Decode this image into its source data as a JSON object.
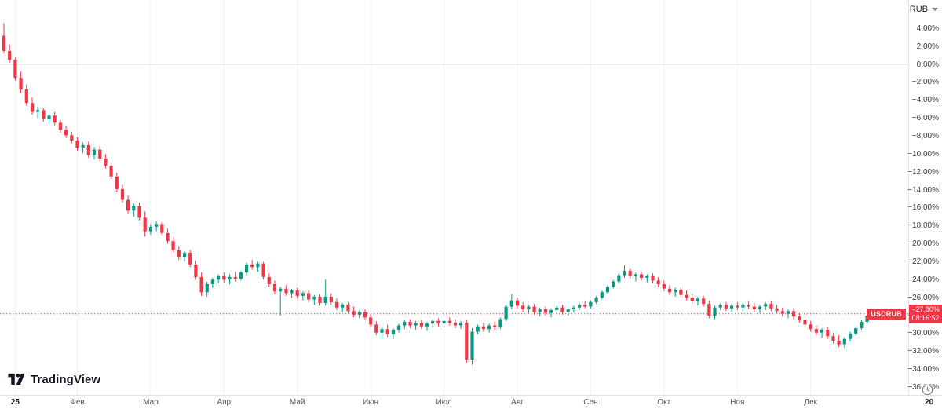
{
  "chart": {
    "currency_selector": {
      "label": "RUB"
    },
    "symbol_badge": {
      "text": "USDRUB"
    },
    "price_flag": {
      "price": "−27,80%",
      "time": "08:16:52"
    },
    "logo": {
      "text": "TradingView"
    }
  },
  "chart_data": {
    "type": "candlestick",
    "symbol": "USDRUB",
    "value_unit": "percent_change",
    "up_color": "#089981",
    "down_color": "#f23645",
    "zero_line_value": 0,
    "current_value": -27.8,
    "current_time": "08:16:52",
    "y_axis": {
      "top": 7.18,
      "bottom": -36.84,
      "ticks": [
        {
          "v": 4,
          "label": "4,00%"
        },
        {
          "v": 2,
          "label": "2,00%"
        },
        {
          "v": 0,
          "label": "0,00%"
        },
        {
          "v": -2,
          "label": "−2,00%"
        },
        {
          "v": -4,
          "label": "−4,00%"
        },
        {
          "v": -6,
          "label": "−6,00%"
        },
        {
          "v": -8,
          "label": "−8,00%"
        },
        {
          "v": -10,
          "label": "−10,00%"
        },
        {
          "v": -12,
          "label": "−12,00%"
        },
        {
          "v": -14,
          "label": "−14,00%"
        },
        {
          "v": -16,
          "label": "−16,00%"
        },
        {
          "v": -18,
          "label": "−18,00%"
        },
        {
          "v": -20,
          "label": "−20,00%"
        },
        {
          "v": -22,
          "label": "−22,00%"
        },
        {
          "v": -24,
          "label": "−24,00%"
        },
        {
          "v": -26,
          "label": "−26,00%"
        },
        {
          "v": -28,
          "label": "−28,00%"
        },
        {
          "v": -30,
          "label": "−30,00%"
        },
        {
          "v": -32,
          "label": "−32,00%"
        },
        {
          "v": -34,
          "label": "−34,00%"
        },
        {
          "v": -36,
          "label": "−36,00%"
        }
      ]
    },
    "x_ticks": [
      {
        "label": "25",
        "index": 2,
        "year": true
      },
      {
        "label": "Фев",
        "index": 13
      },
      {
        "label": "Мар",
        "index": 26
      },
      {
        "label": "Апр",
        "index": 39
      },
      {
        "label": "Май",
        "index": 52
      },
      {
        "label": "Июн",
        "index": 65
      },
      {
        "label": "Июл",
        "index": 78
      },
      {
        "label": "Авг",
        "index": 91
      },
      {
        "label": "Сен",
        "index": 104
      },
      {
        "label": "Окт",
        "index": 117
      },
      {
        "label": "Ноя",
        "index": 130
      },
      {
        "label": "Дек",
        "index": 143
      },
      {
        "label": "20",
        "index": 164,
        "year": true
      }
    ],
    "candles": [
      [
        3.2,
        4.6,
        1.2,
        1.5
      ],
      [
        1.5,
        2.2,
        0.2,
        0.5
      ],
      [
        0.5,
        0.8,
        -1.8,
        -1.5
      ],
      [
        -1.5,
        -0.8,
        -3.2,
        -2.8
      ],
      [
        -2.8,
        -2.2,
        -4.6,
        -4.3
      ],
      [
        -4.3,
        -3.7,
        -5.6,
        -5.3
      ],
      [
        -5.3,
        -4.7,
        -6.0,
        -5.1
      ],
      [
        -5.1,
        -4.9,
        -6.4,
        -6.1
      ],
      [
        -6.1,
        -5.5,
        -6.6,
        -5.7
      ],
      [
        -5.7,
        -5.3,
        -6.8,
        -6.5
      ],
      [
        -6.5,
        -6.2,
        -7.6,
        -7.3
      ],
      [
        -7.3,
        -6.8,
        -8.2,
        -7.9
      ],
      [
        -7.9,
        -7.5,
        -8.8,
        -8.5
      ],
      [
        -8.5,
        -8.1,
        -9.6,
        -9.3
      ],
      [
        -9.3,
        -8.7,
        -9.9,
        -9.0
      ],
      [
        -9.0,
        -8.6,
        -10.4,
        -10.1
      ],
      [
        -10.1,
        -9.2,
        -10.6,
        -9.5
      ],
      [
        -9.5,
        -9.1,
        -10.8,
        -10.5
      ],
      [
        -10.5,
        -10.0,
        -11.6,
        -11.3
      ],
      [
        -11.3,
        -10.9,
        -12.8,
        -12.5
      ],
      [
        -12.5,
        -12.1,
        -14.2,
        -13.9
      ],
      [
        -13.9,
        -13.4,
        -15.4,
        -15.1
      ],
      [
        -15.1,
        -14.6,
        -16.6,
        -16.3
      ],
      [
        -16.3,
        -15.5,
        -17.0,
        -15.8
      ],
      [
        -15.8,
        -15.4,
        -17.4,
        -17.1
      ],
      [
        -17.1,
        -16.4,
        -19.2,
        -18.6
      ],
      [
        -18.6,
        -17.8,
        -19.0,
        -18.1
      ],
      [
        -18.1,
        -17.5,
        -18.6,
        -17.8
      ],
      [
        -17.8,
        -17.6,
        -19.0,
        -18.8
      ],
      [
        -18.8,
        -18.3,
        -20.0,
        -19.7
      ],
      [
        -19.7,
        -19.2,
        -21.0,
        -20.7
      ],
      [
        -20.7,
        -20.3,
        -21.8,
        -21.5
      ],
      [
        -21.5,
        -20.8,
        -22.0,
        -21.0
      ],
      [
        -21.0,
        -20.7,
        -22.6,
        -22.3
      ],
      [
        -22.3,
        -21.9,
        -24.0,
        -23.7
      ],
      [
        -23.7,
        -23.2,
        -25.8,
        -25.4
      ],
      [
        -25.4,
        -24.2,
        -25.9,
        -24.5
      ],
      [
        -24.5,
        -23.8,
        -24.9,
        -24.0
      ],
      [
        -24.0,
        -23.4,
        -24.4,
        -23.6
      ],
      [
        -23.6,
        -23.2,
        -24.3,
        -24.0
      ],
      [
        -24.0,
        -23.4,
        -24.5,
        -23.7
      ],
      [
        -23.7,
        -23.1,
        -24.2,
        -23.9
      ],
      [
        -23.9,
        -23.0,
        -24.1,
        -23.2
      ],
      [
        -23.2,
        -22.1,
        -23.5,
        -22.3
      ],
      [
        -22.3,
        -21.8,
        -22.9,
        -22.6
      ],
      [
        -22.6,
        -22.0,
        -23.1,
        -22.2
      ],
      [
        -22.2,
        -22.0,
        -24.0,
        -23.7
      ],
      [
        -23.7,
        -23.3,
        -24.8,
        -24.5
      ],
      [
        -24.5,
        -24.1,
        -25.6,
        -25.3
      ],
      [
        -25.3,
        -24.8,
        -28.0,
        -25.0
      ],
      [
        -25.0,
        -24.6,
        -25.8,
        -25.5
      ],
      [
        -25.5,
        -25.0,
        -26.0,
        -25.2
      ],
      [
        -25.2,
        -24.9,
        -26.1,
        -25.8
      ],
      [
        -25.8,
        -25.3,
        -26.3,
        -25.5
      ],
      [
        -25.5,
        -25.2,
        -26.5,
        -26.2
      ],
      [
        -26.2,
        -25.7,
        -26.8,
        -25.9
      ],
      [
        -25.9,
        -25.6,
        -26.9,
        -26.6
      ],
      [
        -26.6,
        -24.0,
        -26.9,
        -25.9
      ],
      [
        -25.9,
        -25.5,
        -26.8,
        -26.5
      ],
      [
        -26.5,
        -26.1,
        -27.4,
        -27.1
      ],
      [
        -27.1,
        -26.6,
        -27.6,
        -26.8
      ],
      [
        -26.8,
        -26.5,
        -27.8,
        -27.5
      ],
      [
        -27.5,
        -27.0,
        -28.2,
        -27.9
      ],
      [
        -27.9,
        -27.4,
        -28.3,
        -27.6
      ],
      [
        -27.6,
        -27.3,
        -28.5,
        -28.2
      ],
      [
        -28.2,
        -27.8,
        -29.3,
        -29.0
      ],
      [
        -29.0,
        -28.6,
        -30.2,
        -29.9
      ],
      [
        -29.9,
        -29.3,
        -30.6,
        -29.5
      ],
      [
        -29.5,
        -29.0,
        -30.4,
        -30.1
      ],
      [
        -30.1,
        -29.4,
        -30.6,
        -29.6
      ],
      [
        -29.6,
        -28.9,
        -29.9,
        -29.1
      ],
      [
        -29.1,
        -28.5,
        -29.5,
        -28.7
      ],
      [
        -28.7,
        -28.4,
        -29.4,
        -29.1
      ],
      [
        -29.1,
        -28.6,
        -29.6,
        -28.8
      ],
      [
        -28.8,
        -28.5,
        -29.5,
        -29.2
      ],
      [
        -29.2,
        -28.7,
        -29.7,
        -28.9
      ],
      [
        -28.9,
        -28.4,
        -29.3,
        -28.6
      ],
      [
        -28.6,
        -28.3,
        -29.2,
        -28.9
      ],
      [
        -28.9,
        -28.4,
        -29.3,
        -28.6
      ],
      [
        -28.6,
        -28.2,
        -29.1,
        -28.8
      ],
      [
        -28.8,
        -28.4,
        -29.4,
        -29.1
      ],
      [
        -29.1,
        -28.6,
        -29.5,
        -28.8
      ],
      [
        -28.8,
        -28.5,
        -33.3,
        -32.9
      ],
      [
        -32.9,
        -29.4,
        -33.5,
        -29.8
      ],
      [
        -29.8,
        -29.0,
        -30.1,
        -29.2
      ],
      [
        -29.2,
        -28.8,
        -29.8,
        -29.5
      ],
      [
        -29.5,
        -28.9,
        -29.9,
        -29.1
      ],
      [
        -29.1,
        -28.7,
        -29.6,
        -29.3
      ],
      [
        -29.3,
        -28.2,
        -29.5,
        -28.4
      ],
      [
        -28.4,
        -26.8,
        -28.6,
        -27.0
      ],
      [
        -27.0,
        -25.6,
        -27.3,
        -26.3
      ],
      [
        -26.3,
        -26.0,
        -27.2,
        -26.9
      ],
      [
        -26.9,
        -26.5,
        -27.6,
        -27.3
      ],
      [
        -27.3,
        -26.8,
        -27.8,
        -27.0
      ],
      [
        -27.0,
        -26.7,
        -27.9,
        -27.6
      ],
      [
        -27.6,
        -27.1,
        -28.1,
        -27.3
      ],
      [
        -27.3,
        -27.0,
        -28.0,
        -27.7
      ],
      [
        -27.7,
        -27.2,
        -28.2,
        -27.4
      ],
      [
        -27.4,
        -26.9,
        -27.8,
        -27.1
      ],
      [
        -27.1,
        -26.8,
        -27.9,
        -27.6
      ],
      [
        -27.6,
        -27.1,
        -28.0,
        -27.3
      ],
      [
        -27.3,
        -26.9,
        -27.7,
        -27.1
      ],
      [
        -27.1,
        -26.6,
        -27.4,
        -26.8
      ],
      [
        -26.8,
        -26.4,
        -27.2,
        -27.0
      ],
      [
        -27.0,
        -26.3,
        -27.2,
        -26.5
      ],
      [
        -26.5,
        -25.8,
        -26.7,
        -26.0
      ],
      [
        -26.0,
        -25.2,
        -26.2,
        -25.4
      ],
      [
        -25.4,
        -24.6,
        -25.6,
        -24.8
      ],
      [
        -24.8,
        -24.0,
        -25.0,
        -24.2
      ],
      [
        -24.2,
        -23.3,
        -24.4,
        -23.5
      ],
      [
        -23.5,
        -22.4,
        -23.8,
        -23.0
      ],
      [
        -23.0,
        -22.8,
        -23.9,
        -23.6
      ],
      [
        -23.6,
        -23.2,
        -24.2,
        -23.4
      ],
      [
        -23.4,
        -23.1,
        -24.1,
        -23.8
      ],
      [
        -23.8,
        -23.4,
        -24.3,
        -23.6
      ],
      [
        -23.6,
        -23.3,
        -24.4,
        -24.1
      ],
      [
        -24.1,
        -23.7,
        -24.8,
        -24.5
      ],
      [
        -24.5,
        -24.1,
        -25.3,
        -25.0
      ],
      [
        -25.0,
        -24.6,
        -25.7,
        -25.4
      ],
      [
        -25.4,
        -24.9,
        -25.9,
        -25.1
      ],
      [
        -25.1,
        -24.8,
        -26.0,
        -25.7
      ],
      [
        -25.7,
        -25.2,
        -26.3,
        -26.0
      ],
      [
        -26.0,
        -25.6,
        -26.7,
        -26.4
      ],
      [
        -26.4,
        -25.9,
        -26.9,
        -26.1
      ],
      [
        -26.1,
        -25.8,
        -27.0,
        -26.7
      ],
      [
        -26.7,
        -26.3,
        -28.3,
        -28.0
      ],
      [
        -28.0,
        -26.9,
        -28.4,
        -27.1
      ],
      [
        -27.1,
        -26.6,
        -27.4,
        -26.8
      ],
      [
        -26.8,
        -26.5,
        -27.5,
        -27.2
      ],
      [
        -27.2,
        -26.7,
        -27.6,
        -26.9
      ],
      [
        -26.9,
        -26.5,
        -27.4,
        -27.1
      ],
      [
        -27.1,
        -26.6,
        -27.5,
        -26.8
      ],
      [
        -26.8,
        -26.4,
        -27.3,
        -27.0
      ],
      [
        -27.0,
        -26.6,
        -27.6,
        -27.3
      ],
      [
        -27.3,
        -26.8,
        -27.7,
        -27.0
      ],
      [
        -27.0,
        -26.5,
        -27.4,
        -26.7
      ],
      [
        -26.7,
        -26.4,
        -27.5,
        -27.2
      ],
      [
        -27.2,
        -26.8,
        -27.8,
        -27.5
      ],
      [
        -27.5,
        -27.1,
        -28.1,
        -27.8
      ],
      [
        -27.8,
        -27.3,
        -28.3,
        -27.5
      ],
      [
        -27.5,
        -27.2,
        -28.4,
        -28.1
      ],
      [
        -28.1,
        -27.7,
        -28.8,
        -28.5
      ],
      [
        -28.5,
        -28.1,
        -29.3,
        -29.0
      ],
      [
        -29.0,
        -28.6,
        -29.8,
        -29.5
      ],
      [
        -29.5,
        -29.1,
        -30.2,
        -29.9
      ],
      [
        -29.9,
        -29.4,
        -30.5,
        -29.6
      ],
      [
        -29.6,
        -29.3,
        -30.6,
        -30.3
      ],
      [
        -30.3,
        -29.9,
        -31.1,
        -30.8
      ],
      [
        -30.8,
        -30.2,
        -31.5,
        -31.2
      ],
      [
        -31.2,
        -30.4,
        -31.6,
        -30.6
      ],
      [
        -30.6,
        -29.8,
        -30.9,
        -30.0
      ],
      [
        -30.0,
        -29.2,
        -30.2,
        -29.4
      ],
      [
        -29.4,
        -28.5,
        -29.6,
        -28.7
      ],
      [
        -28.7,
        -27.8,
        -28.9,
        -28.0
      ],
      [
        -28.0,
        -27.4,
        -28.3,
        -27.6
      ],
      [
        -27.6,
        -27.3,
        -28.2,
        -27.9
      ],
      [
        -27.9,
        -27.5,
        -28.1,
        -27.8
      ]
    ]
  }
}
